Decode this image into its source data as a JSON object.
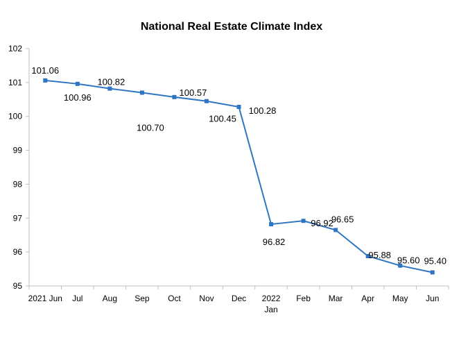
{
  "chart_data": {
    "type": "line",
    "title": "National Real Estate Climate Index",
    "xlabel": "",
    "ylabel": "",
    "categories": [
      "2021 Jun",
      "Jul",
      "Aug",
      "Sep",
      "Oct",
      "Nov",
      "Dec",
      "2022 Jan",
      "Feb",
      "Mar",
      "Apr",
      "May",
      "Jun"
    ],
    "category_labels": [
      [
        "2021 Jun"
      ],
      [
        "Jul"
      ],
      [
        "Aug"
      ],
      [
        "Sep"
      ],
      [
        "Oct"
      ],
      [
        "Nov"
      ],
      [
        "Dec"
      ],
      [
        "2022",
        "Jan"
      ],
      [
        "Feb"
      ],
      [
        "Mar"
      ],
      [
        "Apr"
      ],
      [
        "May"
      ],
      [
        "Jun"
      ]
    ],
    "series": [
      {
        "values": [
          101.06,
          100.96,
          100.82,
          100.7,
          100.57,
          100.45,
          100.28,
          96.82,
          96.92,
          96.65,
          95.88,
          95.6,
          95.4
        ],
        "value_labels": [
          "101.06",
          "100.96",
          "100.82",
          "100.70",
          "100.57",
          "100.45",
          "100.28",
          "96.82",
          "96.92",
          "96.65",
          "95.88",
          "95.60",
          "95.40"
        ]
      }
    ],
    "ylim": [
      95,
      102
    ],
    "yticks": [
      95,
      96,
      97,
      98,
      99,
      100,
      101,
      102
    ],
    "grid": false,
    "legend": "none",
    "colors": {
      "series": "#2f75c3",
      "axis": "#bfbfbf",
      "text": "#000000"
    }
  }
}
